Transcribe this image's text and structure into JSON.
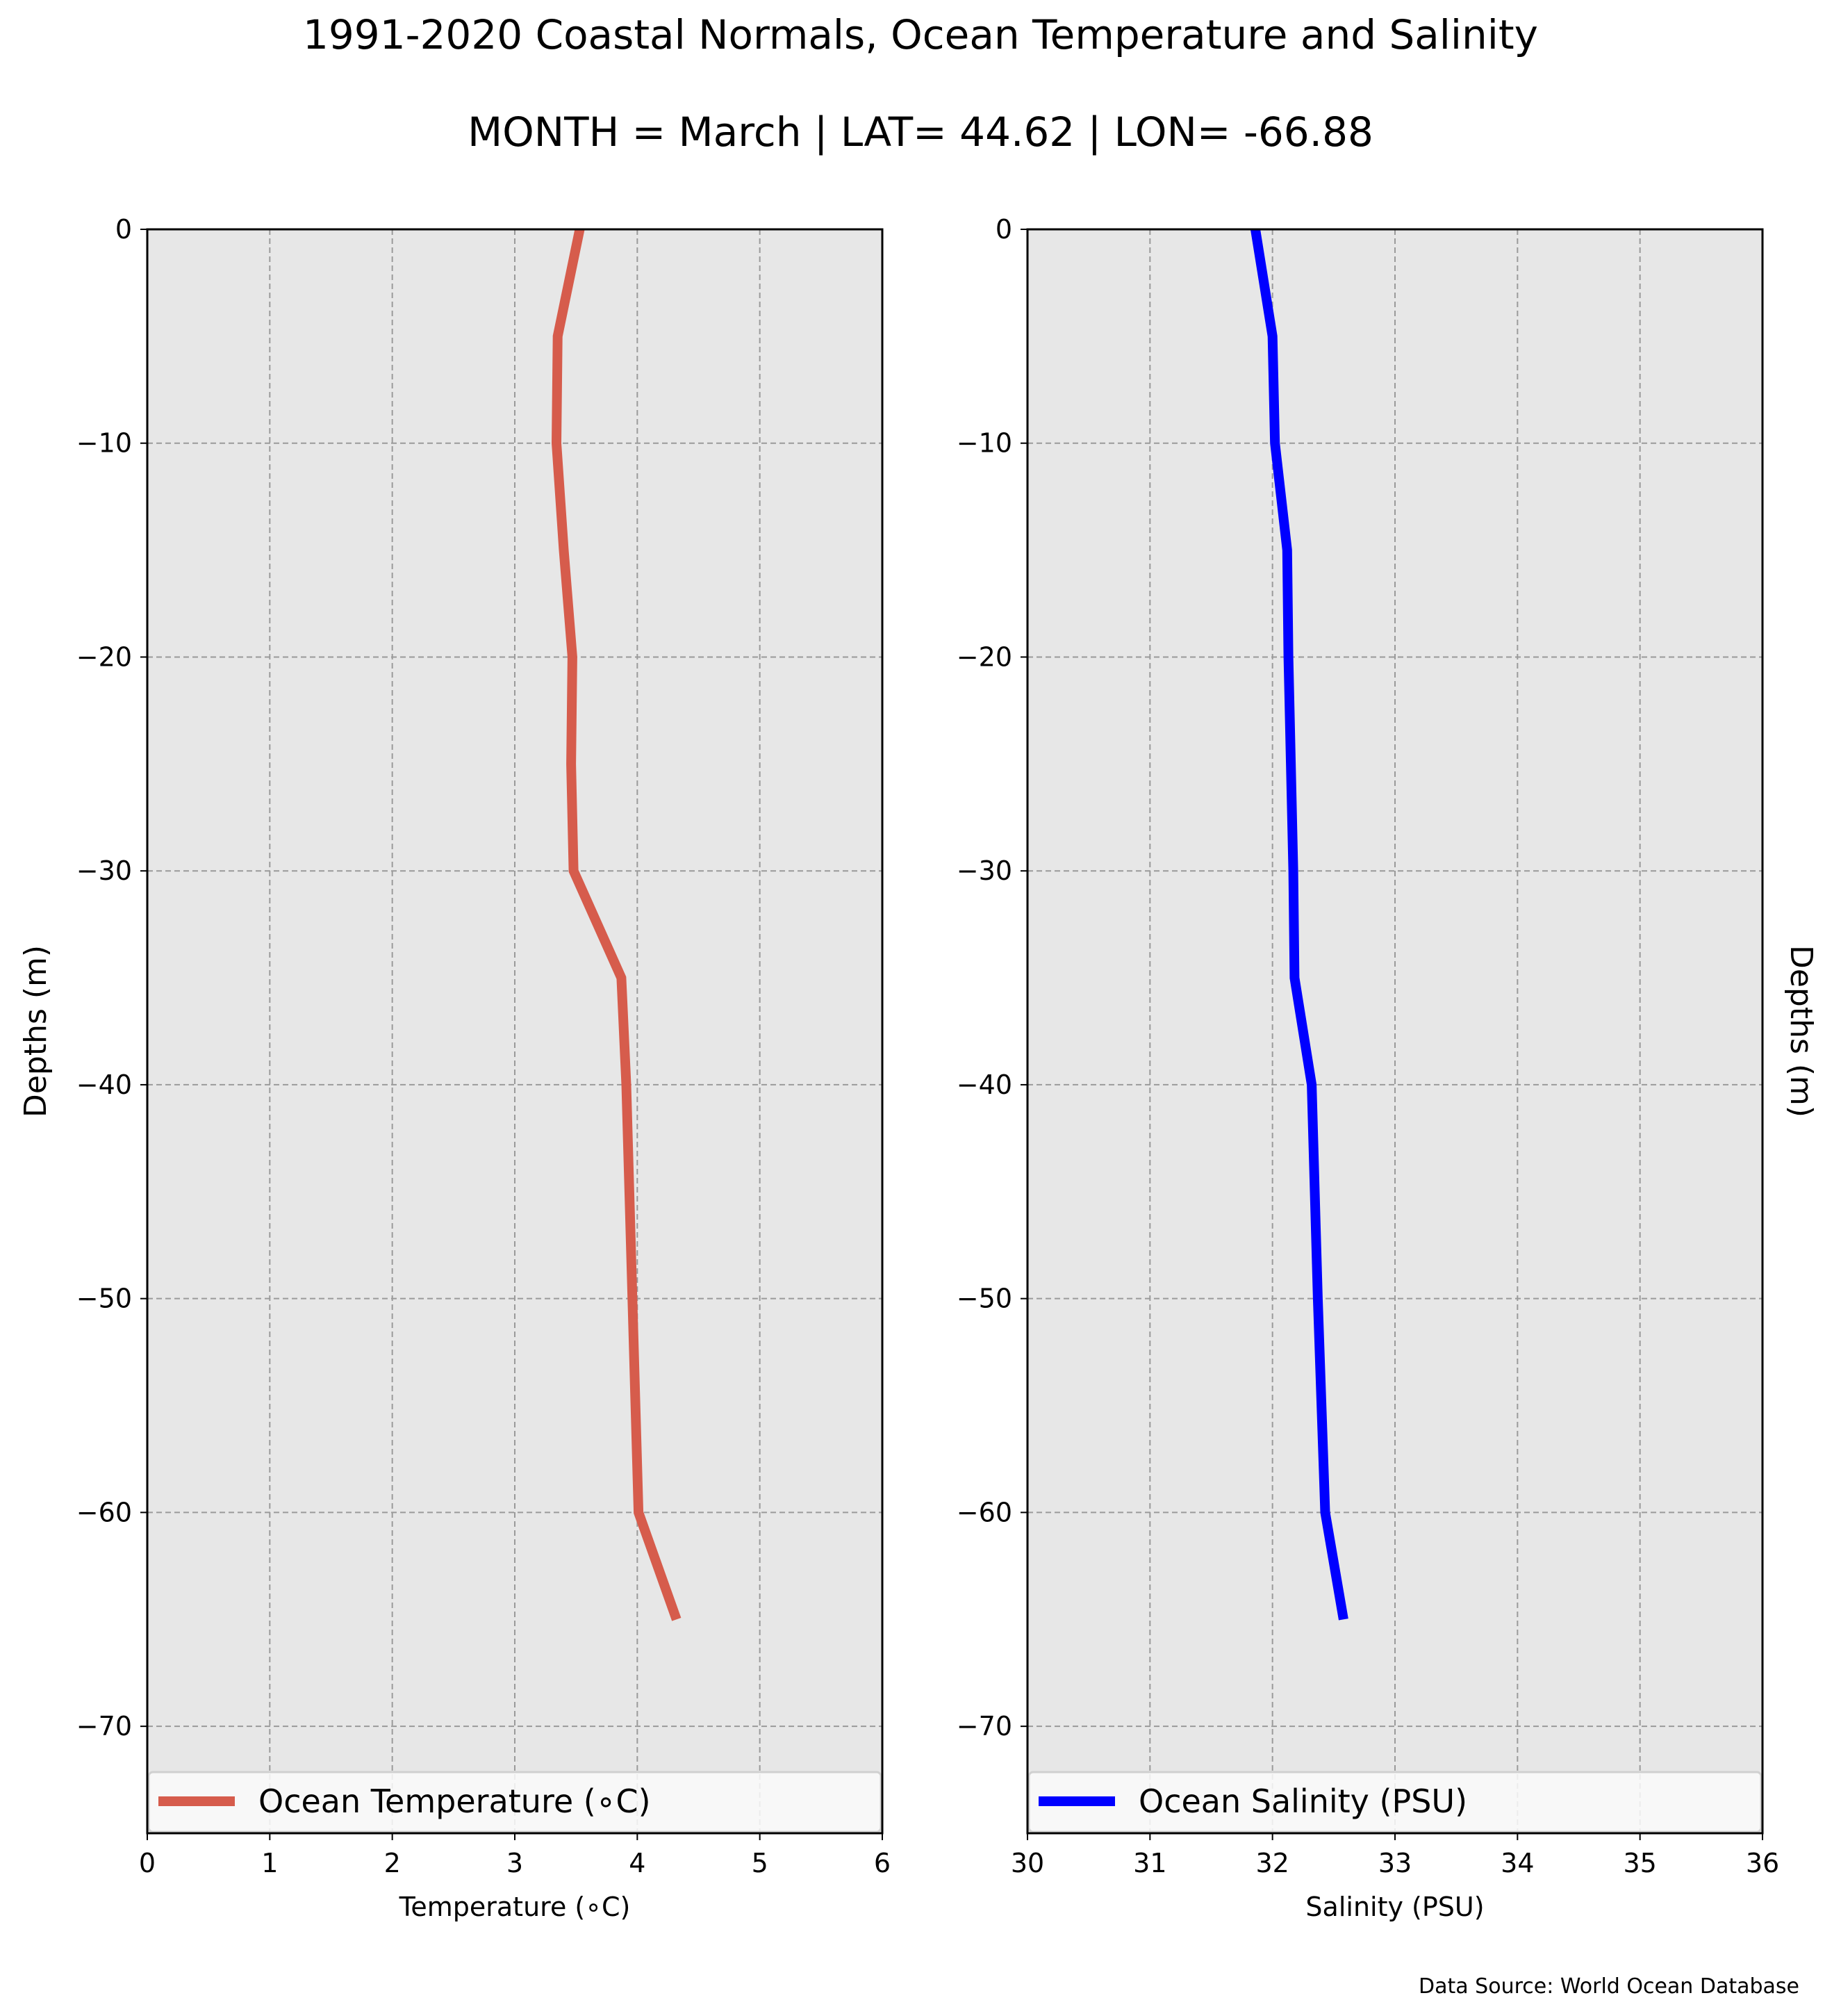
{
  "figure": {
    "title": "1991-2020 Coastal Normals, Ocean Temperature and Salinity",
    "subtitle": "MONTH = March | LAT= 44.62 | LON= -66.88",
    "source_note": "Data Source: World Ocean Database"
  },
  "chart_data": [
    {
      "type": "line",
      "orientation": "vertical-profile",
      "xlabel": "Temperature ($^\\circ$C)",
      "xlabel_display": "Temperature (∘C)",
      "ylabel": "Depths (m)",
      "xlim": [
        0,
        6
      ],
      "ylim": [
        -75,
        0
      ],
      "xticks": [
        "0",
        "1",
        "2",
        "3",
        "4",
        "5",
        "6"
      ],
      "yticks": [
        "0",
        "−10",
        "−20",
        "−30",
        "−40",
        "−50",
        "−60",
        "−70"
      ],
      "grid": true,
      "legend_position": "bottom",
      "series": [
        {
          "name": "Ocean Temperature (∘C)",
          "color": "#d65c4c",
          "x": [
            3.53,
            3.35,
            3.34,
            3.4,
            3.47,
            3.46,
            3.48,
            3.87,
            3.91,
            3.96,
            4.01,
            4.32
          ],
          "y": [
            0,
            -5,
            -10,
            -15,
            -20,
            -25,
            -30,
            -35,
            -40,
            -50,
            -60,
            -65
          ]
        }
      ]
    },
    {
      "type": "line",
      "orientation": "vertical-profile",
      "xlabel": "Salinity (PSU)",
      "ylabel": "Depths (m)",
      "xlim": [
        30,
        36
      ],
      "ylim": [
        -75,
        0
      ],
      "xticks": [
        "30",
        "31",
        "32",
        "33",
        "34",
        "35",
        "36"
      ],
      "yticks": [
        "0",
        "−10",
        "−20",
        "−30",
        "−40",
        "−50",
        "−60",
        "−70"
      ],
      "grid": true,
      "legend_position": "bottom",
      "series": [
        {
          "name": "Ocean Salinity (PSU)",
          "color": "#0000ff",
          "x": [
            31.86,
            32.0,
            32.02,
            32.12,
            32.13,
            32.15,
            32.17,
            32.18,
            32.32,
            32.37,
            32.43,
            32.58
          ],
          "y": [
            0,
            -5,
            -10,
            -15,
            -20,
            -25,
            -30,
            -35,
            -40,
            -50,
            -60,
            -65
          ]
        }
      ]
    }
  ]
}
